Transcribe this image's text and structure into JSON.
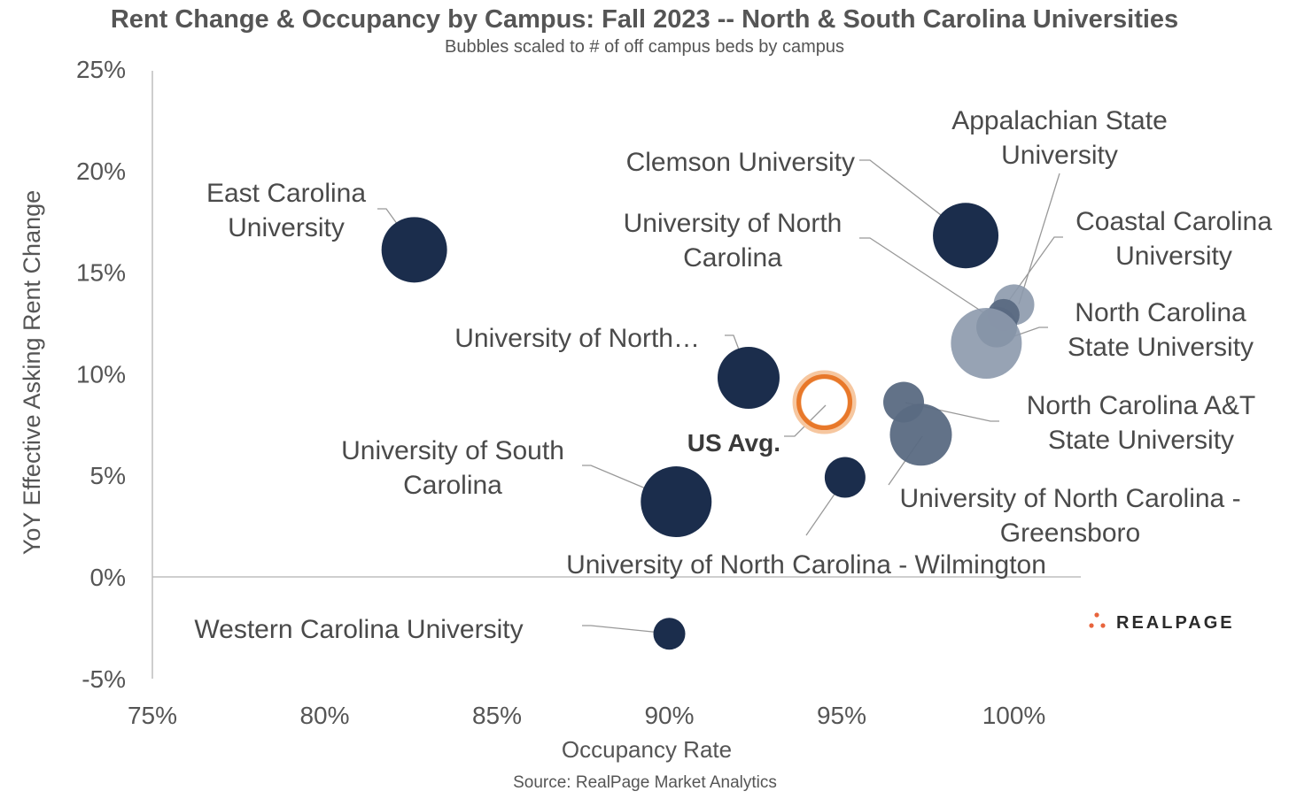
{
  "title": "Rent Change & Occupancy by Campus: Fall 2023  -- North & South Carolina Universities",
  "subtitle": "Bubbles scaled to # of off campus beds by campus",
  "source": "Source: RealPage Market Analytics",
  "brand": {
    "name": "REALPAGE",
    "dot_color": "#e8643c"
  },
  "colors": {
    "dark": "#1b2d4c",
    "slate": "#5a6a82",
    "light": "#8c99ac",
    "us_avg": "#e8782a",
    "axis": "#bdbdbd",
    "leader": "#999999"
  },
  "chart_data": {
    "type": "scatter",
    "title": "Rent Change & Occupancy by Campus: Fall 2023  -- North & South Carolina Universities",
    "xlabel": "Occupancy Rate",
    "ylabel": "YoY Effective Asking Rent Change",
    "xlim": [
      75,
      102
    ],
    "ylim": [
      -5,
      25
    ],
    "x_ticks": [
      "75%",
      "80%",
      "85%",
      "90%",
      "95%",
      "100%"
    ],
    "y_ticks": [
      "25%",
      "20%",
      "15%",
      "10%",
      "5%",
      "0%",
      "-5%"
    ],
    "grid": false,
    "points": [
      {
        "label": "East Carolina University",
        "label_lines": [
          "East Carolina",
          "University"
        ],
        "x": 82.6,
        "y": 16.1,
        "color": "dark",
        "size": "large"
      },
      {
        "label": "Clemson University",
        "label_lines": [
          "Clemson University"
        ],
        "x": 98.6,
        "y": 16.8,
        "color": "dark",
        "size": "large"
      },
      {
        "label": "Appalachian State University",
        "label_lines": [
          "Appalachian State",
          "University"
        ],
        "x": 100.0,
        "y": 13.4,
        "color": "light",
        "size": "small"
      },
      {
        "label": "University of North Carolina",
        "label_lines": [
          "University of North",
          "Carolina"
        ],
        "x": 99.5,
        "y": 12.3,
        "color": "slate",
        "size": "small"
      },
      {
        "label": "Coastal Carolina University",
        "label_lines": [
          "Coastal Carolina",
          "University"
        ],
        "x": 99.7,
        "y": 12.9,
        "color": "slate",
        "size": "xsmall"
      },
      {
        "label": "North Carolina State University",
        "label_lines": [
          "North Carolina",
          "State University"
        ],
        "x": 99.2,
        "y": 11.5,
        "color": "light",
        "size": "xlarge"
      },
      {
        "label": "University of North…",
        "label_lines": [
          "University of North…"
        ],
        "x": 92.3,
        "y": 9.8,
        "color": "dark",
        "size": "medium"
      },
      {
        "label": "North Carolina A&T State University",
        "label_lines": [
          "North Carolina A&T",
          "State University"
        ],
        "x": 96.8,
        "y": 8.6,
        "color": "slate",
        "size": "small"
      },
      {
        "label": "University of North Carolina - Greensboro",
        "label_lines": [
          "University of North Carolina -",
          "Greensboro"
        ],
        "x": 97.3,
        "y": 7.0,
        "color": "slate",
        "size": "medium"
      },
      {
        "label": "University of South Carolina",
        "label_lines": [
          "University of South",
          "Carolina"
        ],
        "x": 90.2,
        "y": 3.7,
        "color": "dark",
        "size": "xlarge"
      },
      {
        "label": "University of North Carolina - Wilmington",
        "label_lines": [
          "University of North Carolina - Wilmington"
        ],
        "x": 95.1,
        "y": 4.9,
        "color": "dark",
        "size": "small"
      },
      {
        "label": "Western Carolina University",
        "label_lines": [
          "Western Carolina University"
        ],
        "x": 90.0,
        "y": -2.8,
        "color": "dark",
        "size": "xsmall"
      }
    ],
    "us_avg": {
      "label": "US Avg.",
      "x": 94.5,
      "y": 8.6
    }
  }
}
